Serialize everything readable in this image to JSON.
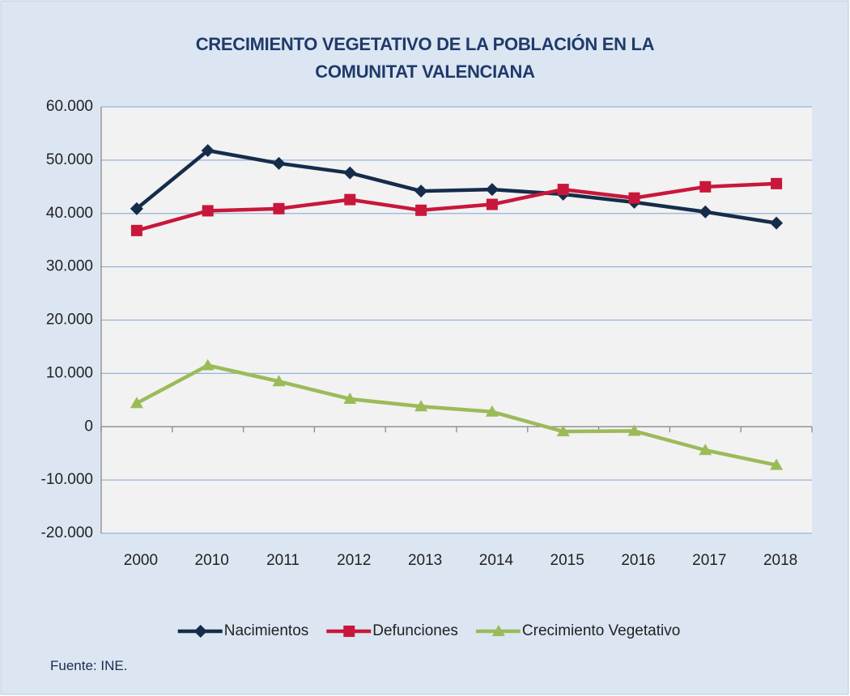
{
  "chart_data": {
    "type": "line",
    "title": "CRECIMIENTO VEGETATIVO DE LA POBLACIÓN EN LA COMUNITAT VALENCIANA",
    "categories": [
      "2000",
      "2010",
      "2011",
      "2012",
      "2013",
      "2014",
      "2015",
      "2016",
      "2017",
      "2018"
    ],
    "series": [
      {
        "name": "Nacimientos",
        "color": "#152c4a",
        "marker": "diamond",
        "values": [
          40900,
          51800,
          49400,
          47600,
          44200,
          44500,
          43600,
          42100,
          40300,
          38200
        ]
      },
      {
        "name": "Defunciones",
        "color": "#c8173b",
        "marker": "square",
        "values": [
          36800,
          40500,
          40900,
          42600,
          40600,
          41700,
          44500,
          42900,
          45000,
          45600
        ]
      },
      {
        "name": "Crecimiento Vegetativo",
        "color": "#9bbb59",
        "marker": "triangle",
        "values": [
          4400,
          11500,
          8500,
          5200,
          3800,
          2800,
          -900,
          -800,
          -4400,
          -7200
        ]
      }
    ],
    "ylim": [
      -20000,
      60000
    ],
    "yticks": [
      {
        "value": -20000,
        "label": "-20.000"
      },
      {
        "value": -10000,
        "label": "-10.000"
      },
      0,
      {
        "value": 10000,
        "label": "10.000"
      },
      {
        "value": 20000,
        "label": "20.000"
      },
      {
        "value": 30000,
        "label": "30.000"
      },
      {
        "value": 40000,
        "label": "40.000"
      },
      {
        "value": 50000,
        "label": "50.000"
      },
      {
        "value": 60000,
        "label": "60.000"
      }
    ],
    "grid": true,
    "legend": "bottom",
    "source": "Fuente: INE."
  }
}
